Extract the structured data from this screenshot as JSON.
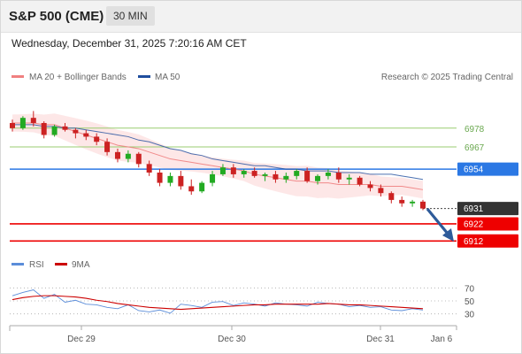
{
  "header": {
    "title": "S&P 500 (CME)",
    "interval": "30 MIN"
  },
  "timestamp": "Wednesday, December 31, 2025 7:20:16 AM CET",
  "legend": {
    "ma20": "MA 20 + Bollinger Bands",
    "ma50": "MA 50",
    "credit": "Research © 2025 Trading Central"
  },
  "colors": {
    "ma20": "#f08080",
    "ma50": "#1f4e9e",
    "up": "#22aa22",
    "down": "#cc2222",
    "level_green": "#9acd70",
    "level_blue": "#2b78e4",
    "level_red": "#ee0000",
    "arrow": "#2e5b9a",
    "last": "#333333"
  },
  "levels": [
    {
      "label": "6978",
      "value": 6978,
      "style": "green"
    },
    {
      "label": "6967",
      "value": 6967,
      "style": "green"
    },
    {
      "label": "6954",
      "value": 6954,
      "style": "blue"
    },
    {
      "label": "6931",
      "value": 6931,
      "style": "last"
    },
    {
      "label": "6922",
      "value": 6922,
      "style": "red"
    },
    {
      "label": "6912",
      "value": 6912,
      "style": "red"
    }
  ],
  "rsi_legend": {
    "rsi": "RSI",
    "ma": "9MA"
  },
  "rsi_axis": [
    "70",
    "50",
    "30"
  ],
  "x_axis": [
    "Dec 29",
    "Dec 30",
    "Dec 31",
    "Jan 6"
  ],
  "chart_data": [
    {
      "type": "candlestick",
      "ylim": [
        6908,
        6996
      ],
      "series": [
        {
          "name": "MA 20 + Bollinger Bands",
          "values": [
            6981,
            6981,
            6981,
            6980,
            6980,
            6978,
            6976,
            6974,
            6972,
            6970,
            6968,
            6967,
            6966,
            6964,
            6962,
            6960,
            6959,
            6958,
            6957,
            6956,
            6955,
            6954,
            6953,
            6951,
            6950,
            6949,
            6948,
            6947,
            6947,
            6946,
            6946,
            6945,
            6945,
            6945,
            6945,
            6944,
            6944,
            6944,
            6943,
            6942
          ]
        },
        {
          "name": "MA 50",
          "values": [
            6980,
            6980,
            6980,
            6979,
            6979,
            6978,
            6978,
            6977,
            6976,
            6975,
            6974,
            6973,
            6971,
            6970,
            6968,
            6966,
            6965,
            6963,
            6962,
            6960,
            6959,
            6958,
            6957,
            6956,
            6956,
            6955,
            6954,
            6954,
            6953,
            6953,
            6953,
            6952,
            6952,
            6952,
            6951,
            6951,
            6951,
            6950,
            6949,
            6948
          ]
        }
      ],
      "candles": [
        [
          6981,
          6983,
          6976,
          6978
        ],
        [
          6978,
          6985,
          6977,
          6984
        ],
        [
          6984,
          6988,
          6979,
          6981
        ],
        [
          6981,
          6982,
          6972,
          6974
        ],
        [
          6974,
          6980,
          6973,
          6979
        ],
        [
          6979,
          6981,
          6976,
          6977
        ],
        [
          6977,
          6978,
          6972,
          6975
        ],
        [
          6975,
          6977,
          6971,
          6973
        ],
        [
          6973,
          6975,
          6968,
          6970
        ],
        [
          6970,
          6972,
          6962,
          6964
        ],
        [
          6964,
          6966,
          6958,
          6960
        ],
        [
          6960,
          6965,
          6958,
          6963
        ],
        [
          6963,
          6964,
          6955,
          6957
        ],
        [
          6957,
          6959,
          6950,
          6952
        ],
        [
          6952,
          6954,
          6944,
          6946
        ],
        [
          6946,
          6952,
          6944,
          6950
        ],
        [
          6950,
          6953,
          6942,
          6944
        ],
        [
          6944,
          6948,
          6939,
          6941
        ],
        [
          6941,
          6947,
          6940,
          6946
        ],
        [
          6946,
          6953,
          6944,
          6951
        ],
        [
          6951,
          6957,
          6950,
          6955
        ],
        [
          6955,
          6957,
          6949,
          6951
        ],
        [
          6951,
          6954,
          6949,
          6953
        ],
        [
          6953,
          6955,
          6949,
          6950
        ],
        [
          6950,
          6952,
          6947,
          6951
        ],
        [
          6951,
          6953,
          6946,
          6948
        ],
        [
          6948,
          6952,
          6946,
          6950
        ],
        [
          6950,
          6954,
          6948,
          6953
        ],
        [
          6953,
          6955,
          6946,
          6947
        ],
        [
          6947,
          6951,
          6945,
          6950
        ],
        [
          6950,
          6954,
          6948,
          6952
        ],
        [
          6952,
          6955,
          6946,
          6948
        ],
        [
          6948,
          6951,
          6945,
          6949
        ],
        [
          6949,
          6950,
          6944,
          6945
        ],
        [
          6945,
          6947,
          6941,
          6943
        ],
        [
          6943,
          6945,
          6938,
          6940
        ],
        [
          6940,
          6941,
          6934,
          6936
        ],
        [
          6936,
          6938,
          6932,
          6934
        ],
        [
          6934,
          6936,
          6932,
          6935
        ],
        [
          6935,
          6936,
          6930,
          6931
        ]
      ]
    },
    {
      "type": "line",
      "ylim": [
        20,
        80
      ],
      "series": [
        {
          "name": "RSI",
          "values": [
            58,
            63,
            67,
            54,
            60,
            48,
            51,
            45,
            44,
            40,
            38,
            44,
            35,
            33,
            36,
            31,
            45,
            43,
            40,
            48,
            49,
            43,
            47,
            45,
            42,
            47,
            45,
            44,
            42,
            48,
            46,
            45,
            41,
            43,
            40,
            41,
            36,
            35,
            38,
            36
          ]
        },
        {
          "name": "9MA",
          "values": [
            52,
            55,
            57,
            58,
            58,
            57,
            56,
            54,
            51,
            49,
            46,
            44,
            42,
            40,
            39,
            38,
            37,
            38,
            39,
            40,
            41,
            42,
            43,
            44,
            44,
            45,
            45,
            45,
            45,
            45,
            46,
            45,
            44,
            44,
            43,
            42,
            41,
            40,
            39,
            38
          ]
        }
      ]
    }
  ]
}
